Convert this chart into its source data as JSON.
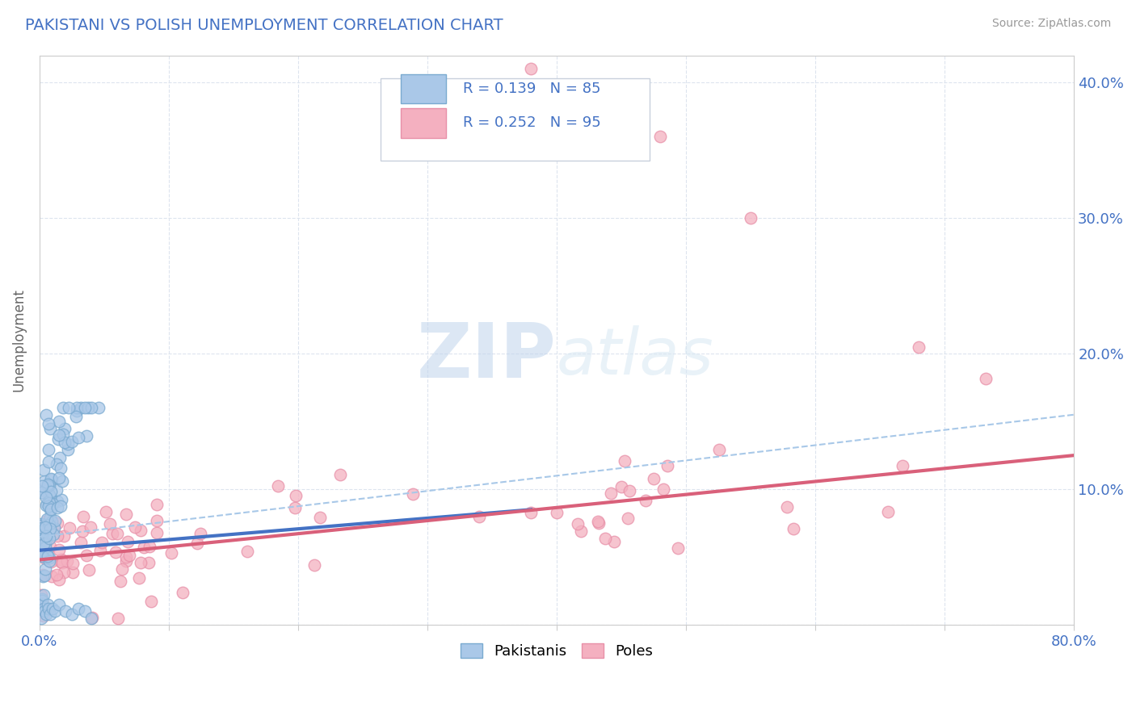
{
  "title": "PAKISTANI VS POLISH UNEMPLOYMENT CORRELATION CHART",
  "source": "Source: ZipAtlas.com",
  "ylabel": "Unemployment",
  "xlim": [
    0.0,
    0.8
  ],
  "ylim": [
    0.0,
    0.42
  ],
  "yticks": [
    0.0,
    0.1,
    0.2,
    0.3,
    0.4
  ],
  "ytick_labels_right": [
    "",
    "10.0%",
    "20.0%",
    "30.0%",
    "40.0%"
  ],
  "r_pakistani": 0.139,
  "n_pakistani": 85,
  "r_polish": 0.252,
  "n_polish": 95,
  "color_pakistani_fill": "#aac8e8",
  "color_pakistani_edge": "#7aaad0",
  "color_polish_fill": "#f4b0c0",
  "color_polish_edge": "#e890a8",
  "color_trendline_pakistani": "#4472c4",
  "color_trendline_polish": "#d9607a",
  "color_dashed": "#a8c8e8",
  "background_color": "#ffffff",
  "grid_color": "#dde4ee",
  "title_color": "#4472c4",
  "axis_color": "#4472c4",
  "title_fontsize": 14,
  "watermark": "ZIPatlas",
  "watermark_color": "#d0dff0",
  "legend_text_color": "#4472c4",
  "legend_label_color": "#333333",
  "trend_pak_x0": 0.0,
  "trend_pak_y0": 0.055,
  "trend_pak_x1": 0.38,
  "trend_pak_y1": 0.085,
  "trend_pol_x0": 0.0,
  "trend_pol_y0": 0.048,
  "trend_pol_x1": 0.8,
  "trend_pol_y1": 0.125,
  "trend_dash_x0": 0.0,
  "trend_dash_y0": 0.065,
  "trend_dash_x1": 0.8,
  "trend_dash_y1": 0.155
}
